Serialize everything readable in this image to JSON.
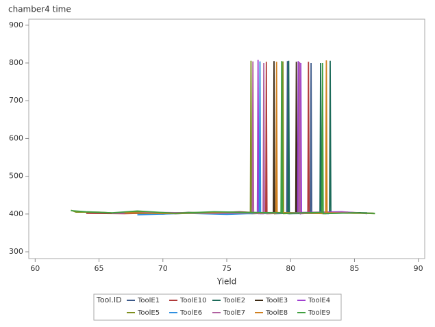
{
  "chart_data": {
    "type": "line",
    "title": "chamber4 time",
    "x_label": "Yield",
    "legend_title": "Tool.ID",
    "xlim": [
      59.5,
      90.5
    ],
    "ylim": [
      282,
      916
    ],
    "xticks": [
      60,
      65,
      70,
      75,
      80,
      85,
      90
    ],
    "yticks": [
      300,
      400,
      500,
      600,
      700,
      800,
      900
    ],
    "series": [
      {
        "name": "ToolE1",
        "color": "#3d5a8a",
        "x": [
          64,
          68,
          70,
          72,
          74,
          76,
          79.7,
          79.75,
          79.8,
          81.55,
          81.6,
          81.65,
          84,
          86
        ],
        "values": [
          403,
          402,
          400,
          404,
          402,
          405,
          402,
          805,
          401,
          403,
          800,
          402,
          404,
          402
        ]
      },
      {
        "name": "ToolE10",
        "color": "#b03a3a",
        "x": [
          64,
          67,
          70,
          73,
          76,
          78.05,
          78.1,
          78.15,
          81.35,
          81.4,
          81.45,
          84,
          86.5
        ],
        "values": [
          402,
          401,
          403,
          402,
          406,
          402,
          803,
          401,
          403,
          803,
          402,
          405,
          402
        ]
      },
      {
        "name": "ToolE2",
        "color": "#1c6b5a",
        "x": [
          68,
          71,
          74,
          77,
          79.8,
          79.85,
          79.9,
          82.3,
          82.35,
          82.4,
          83.05,
          83.1,
          83.15,
          86
        ],
        "values": [
          402,
          403,
          404,
          401,
          403,
          806,
          401,
          402,
          800,
          403,
          402,
          806,
          404,
          403
        ]
      },
      {
        "name": "ToolE3",
        "color": "#3b2a14",
        "x": [
          69,
          72,
          75,
          78.65,
          78.7,
          78.75,
          80.4,
          80.45,
          80.5,
          83,
          85.5
        ],
        "values": [
          401,
          404,
          402,
          403,
          805,
          401,
          402,
          803,
          404,
          402,
          403
        ]
      },
      {
        "name": "ToolE4",
        "color": "#a040d0",
        "x": [
          70,
          73,
          76,
          77.4,
          77.45,
          77.5,
          80.55,
          80.6,
          80.65,
          80.75,
          80.8,
          80.85,
          84,
          86
        ],
        "values": [
          401,
          403,
          405,
          402,
          808,
          401,
          402,
          805,
          403,
          401,
          800,
          404,
          406,
          401
        ]
      },
      {
        "name": "ToolE5",
        "color": "#7f8f1f",
        "x": [
          62.8,
          63.2,
          65,
          66.5,
          68,
          70,
          73,
          76.85,
          76.9,
          76.95,
          79.35,
          79.4,
          79.45,
          82,
          85,
          86.6
        ],
        "values": [
          410,
          405,
          405,
          402,
          406,
          403,
          404,
          402,
          806,
          403,
          402,
          804,
          401,
          404,
          403,
          401
        ]
      },
      {
        "name": "ToolE6",
        "color": "#2f8fe0",
        "x": [
          68,
          70,
          72,
          75,
          77.55,
          77.6,
          77.65,
          80,
          83
        ],
        "values": [
          398,
          400,
          402,
          399,
          402,
          804,
          401,
          403,
          401
        ]
      },
      {
        "name": "ToolE7",
        "color": "#b060a0",
        "x": [
          66,
          70,
          74,
          77,
          77.05,
          77.1,
          77.85,
          77.9,
          77.95,
          80.65,
          80.7,
          80.75,
          84.5
        ],
        "values": [
          402,
          404,
          402,
          403,
          804,
          402,
          401,
          800,
          404,
          403,
          802,
          401,
          405
        ]
      },
      {
        "name": "ToolE8",
        "color": "#d08020",
        "x": [
          67,
          71,
          75,
          78.85,
          78.9,
          78.95,
          82.75,
          82.8,
          82.85,
          85,
          86.5
        ],
        "values": [
          403,
          401,
          405,
          402,
          803,
          404,
          401,
          807,
          403,
          402,
          402
        ]
      },
      {
        "name": "ToolE9",
        "color": "#40a040",
        "x": [
          62.8,
          64,
          66,
          68,
          71,
          74,
          77,
          79.25,
          79.3,
          79.35,
          82.45,
          82.5,
          82.55,
          85,
          86.6
        ],
        "values": [
          409,
          406,
          403,
          408,
          402,
          406,
          404,
          403,
          805,
          402,
          404,
          800,
          401,
          403,
          402
        ]
      }
    ]
  }
}
